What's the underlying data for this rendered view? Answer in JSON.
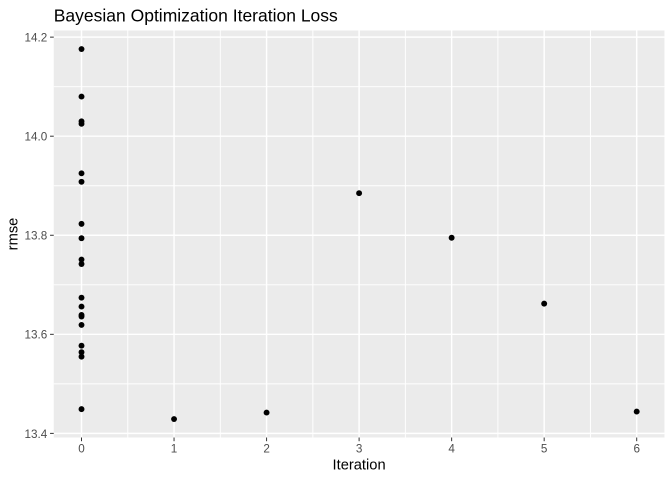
{
  "chart_data": {
    "type": "scatter",
    "title": "Bayesian Optimization Iteration Loss",
    "xlabel": "Iteration",
    "ylabel": "rmse",
    "xlim": [
      -0.3,
      6.3
    ],
    "ylim": [
      13.3917,
      14.2134
    ],
    "x_ticks": [
      0,
      1,
      2,
      3,
      4,
      5,
      6
    ],
    "x_tick_labels": [
      "0",
      "1",
      "2",
      "3",
      "4",
      "5",
      "6"
    ],
    "y_ticks": [
      13.4,
      13.6,
      13.8,
      14.0,
      14.2
    ],
    "y_tick_labels": [
      "13.4",
      "13.6",
      "13.8",
      "14.0",
      "14.2"
    ],
    "x_minor_breaks": [
      0.5,
      1.5,
      2.5,
      3.5,
      4.5,
      5.5
    ],
    "y_minor_breaks": [
      13.5,
      13.7,
      13.9,
      14.1
    ],
    "grid": true,
    "legend": "none",
    "colors": {
      "page_background": "#FFFFFF",
      "panel_background": "#EBEBEB",
      "gridline": "#FFFFFF",
      "point": "#000000",
      "title_text": "#000000",
      "axis_title_text": "#000000",
      "tick_label_text": "#4D4D4D",
      "tick_mark": "#333333"
    },
    "points": [
      {
        "x": 0,
        "y": 14.176
      },
      {
        "x": 0,
        "y": 14.08
      },
      {
        "x": 0,
        "y": 14.03
      },
      {
        "x": 0,
        "y": 14.025
      },
      {
        "x": 0,
        "y": 13.925
      },
      {
        "x": 0,
        "y": 13.908
      },
      {
        "x": 0,
        "y": 13.823
      },
      {
        "x": 0,
        "y": 13.794
      },
      {
        "x": 0,
        "y": 13.751
      },
      {
        "x": 0,
        "y": 13.742
      },
      {
        "x": 0,
        "y": 13.674
      },
      {
        "x": 0,
        "y": 13.656
      },
      {
        "x": 0,
        "y": 13.639
      },
      {
        "x": 0,
        "y": 13.636
      },
      {
        "x": 0,
        "y": 13.619
      },
      {
        "x": 0,
        "y": 13.577
      },
      {
        "x": 0,
        "y": 13.564
      },
      {
        "x": 0,
        "y": 13.555
      },
      {
        "x": 0,
        "y": 13.449
      },
      {
        "x": 1,
        "y": 13.429
      },
      {
        "x": 2,
        "y": 13.442
      },
      {
        "x": 3,
        "y": 13.885
      },
      {
        "x": 4,
        "y": 13.795
      },
      {
        "x": 5,
        "y": 13.662
      },
      {
        "x": 6,
        "y": 13.444
      }
    ]
  }
}
